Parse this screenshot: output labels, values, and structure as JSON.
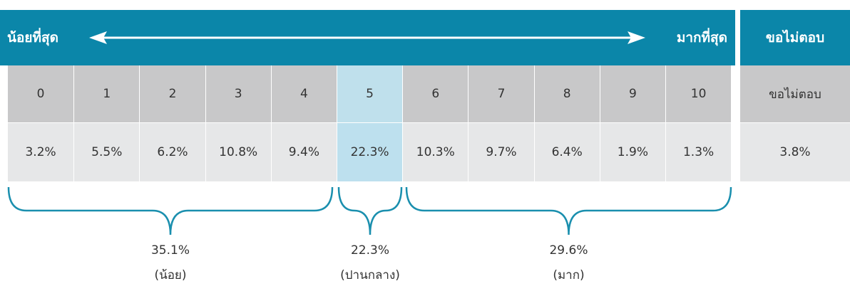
{
  "header": {
    "left": "น้อยที่สุด",
    "right": "มากที่สุด",
    "no_answer": "ขอไม่ตอบ"
  },
  "scale": [
    "0",
    "1",
    "2",
    "3",
    "4",
    "5",
    "6",
    "7",
    "8",
    "9",
    "10"
  ],
  "shares": [
    "3.2%",
    "5.5%",
    "6.2%",
    "10.8%",
    "9.4%",
    "22.3%",
    "10.3%",
    "9.7%",
    "6.4%",
    "1.9%",
    "1.3%"
  ],
  "no_answer": {
    "label": "ขอไม่ตอบ",
    "share": "3.8%"
  },
  "groups": [
    {
      "share": "35.1%",
      "label": "(น้อย)"
    },
    {
      "share": "22.3%",
      "label": "(ปานกลาง)"
    },
    {
      "share": "29.6%",
      "label": "(มาก)"
    }
  ]
}
